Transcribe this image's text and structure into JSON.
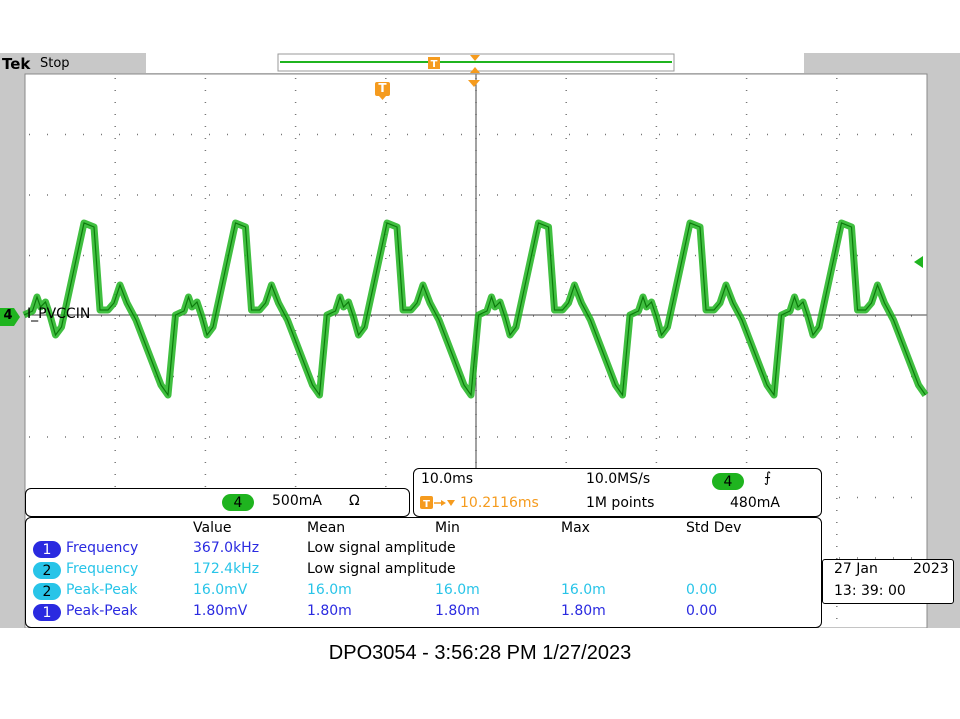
{
  "header": {
    "brand": "Tek",
    "acq_state": "Stop"
  },
  "channel_label": {
    "number": "4",
    "name": "I_PVCCIN"
  },
  "trigger_marker": "T",
  "channel_readout": {
    "channel": "4",
    "scale": "500mA",
    "impedance": "Ω"
  },
  "timebase": {
    "time_per_div": "10.0ms",
    "sample_rate": "10.0MS/s",
    "trigger_channel": "4",
    "trigger_slope": "⨍",
    "trigger_delay": "10.2116ms",
    "record_length": "1M points",
    "trigger_level": "480mA"
  },
  "measurements": {
    "headers": [
      "Value",
      "Mean",
      "Min",
      "Max",
      "Std Dev"
    ],
    "rows": [
      {
        "channel": "1",
        "name": "Frequency",
        "value": "367.0kHz",
        "note": "Low signal amplitude",
        "mean": "",
        "min": "",
        "max": "",
        "std": "",
        "color": "#2a2ae0"
      },
      {
        "channel": "2",
        "name": "Frequency",
        "value": "172.4kHz",
        "note": "Low signal amplitude",
        "mean": "",
        "min": "",
        "max": "",
        "std": "",
        "color": "#28c4e8"
      },
      {
        "channel": "2",
        "name": "Peak-Peak",
        "value": "16.0mV",
        "note": "",
        "mean": "16.0m",
        "min": "16.0m",
        "max": "16.0m",
        "std": "0.00",
        "color": "#28c4e8"
      },
      {
        "channel": "1",
        "name": "Peak-Peak",
        "value": "1.80mV",
        "note": "",
        "mean": "1.80m",
        "min": "1.80m",
        "max": "1.80m",
        "std": "0.00",
        "color": "#2a2ae0"
      }
    ]
  },
  "datetime": {
    "date": "27 Jan",
    "year": "2023",
    "time": "13: 39: 00"
  },
  "footer": "DPO3054 - 3:56:28 PM    1/27/2023",
  "colors": {
    "trace": "#1fb41f",
    "trigger": "#f59b1e",
    "ch1": "#2a2ae0",
    "ch2": "#28c4e8",
    "ch4": "#1fb41f"
  }
}
